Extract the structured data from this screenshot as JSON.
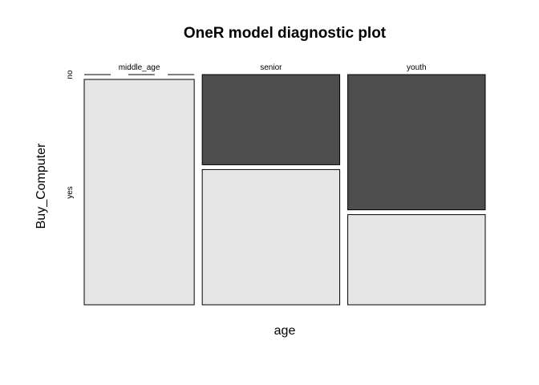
{
  "chart_data": {
    "type": "mosaic",
    "title": "OneR model diagnostic plot",
    "xlabel": "age",
    "ylabel": "Buy_Computer",
    "x_categories": [
      "middle_age",
      "senior",
      "youth"
    ],
    "x_proportions": [
      0.2857,
      0.3571,
      0.3571
    ],
    "y_categories": [
      "no",
      "yes"
    ],
    "segments": [
      {
        "x": "middle_age",
        "no": 0.0,
        "yes": 1.0
      },
      {
        "x": "senior",
        "no": 0.4,
        "yes": 0.6
      },
      {
        "x": "youth",
        "no": 0.6,
        "yes": 0.4
      }
    ],
    "colors": {
      "no": "#4d4d4d",
      "yes": "#e6e6e6"
    }
  }
}
